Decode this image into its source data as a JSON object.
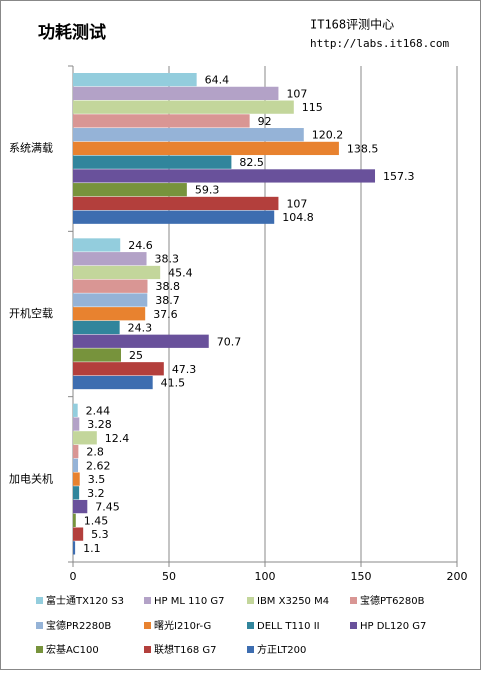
{
  "chart_data": {
    "type": "bar",
    "orientation": "horizontal",
    "title": "功耗测试",
    "annotations": [
      "IT168评测中心",
      "http://labs.it168.com"
    ],
    "categories": [
      "系统满载",
      "开机空载",
      "加电关机"
    ],
    "series": [
      {
        "name": "富士通TX120 S3",
        "color": "#93cddd",
        "values": [
          64.4,
          24.6,
          2.44
        ]
      },
      {
        "name": "HP ML 110 G7",
        "color": "#b3a2c7",
        "values": [
          107,
          38.3,
          3.28
        ]
      },
      {
        "name": "IBM X3250 M4",
        "color": "#c3d69b",
        "values": [
          115,
          45.4,
          12.4
        ]
      },
      {
        "name": "宝德PT6280B",
        "color": "#d99694",
        "values": [
          92,
          38.8,
          2.8
        ]
      },
      {
        "name": "宝德PR2280B",
        "color": "#95b3d7",
        "values": [
          120.2,
          38.7,
          2.62
        ]
      },
      {
        "name": "曙光I210r-G",
        "color": "#e8822f",
        "values": [
          138.5,
          37.6,
          3.5
        ]
      },
      {
        "name": "DELL T110 II",
        "color": "#31859c",
        "values": [
          82.5,
          24.3,
          3.2
        ]
      },
      {
        "name": "HP DL120 G7",
        "color": "#69519b",
        "values": [
          157.3,
          70.7,
          7.45
        ]
      },
      {
        "name": "宏基AC100",
        "color": "#77933c",
        "values": [
          59.3,
          25,
          1.45
        ]
      },
      {
        "name": "联想T168 G7",
        "color": "#b33f3c",
        "values": [
          107,
          47.3,
          5.3
        ]
      },
      {
        "name": "方正LT200",
        "color": "#3d6db0",
        "values": [
          104.8,
          41.5,
          1.1
        ]
      }
    ],
    "xlim": [
      0,
      200
    ],
    "xticks": [
      0,
      50,
      100,
      150,
      200
    ],
    "grid": true,
    "legend": "bottom"
  }
}
